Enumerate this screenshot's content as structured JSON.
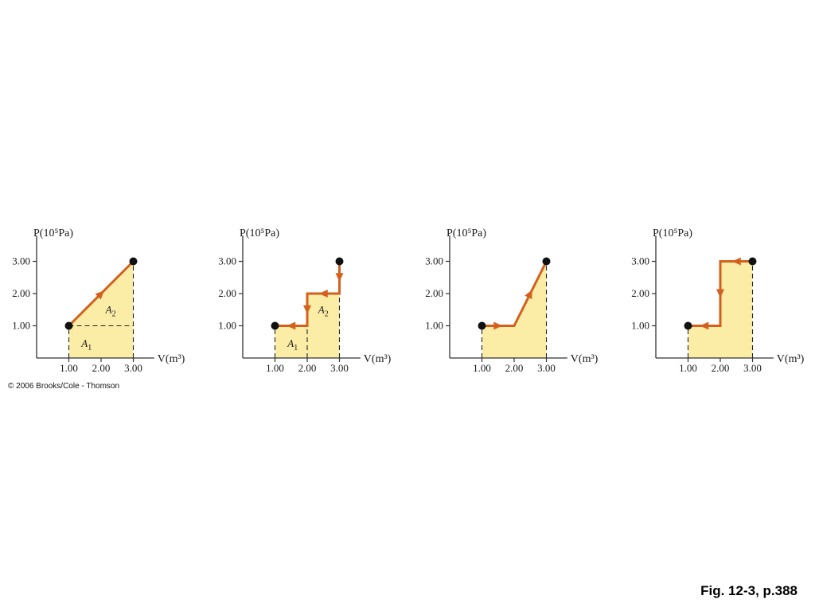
{
  "colors": {
    "fill": "#fbeca6",
    "path": "#d4601f",
    "dot": "#111111",
    "axis": "#333333"
  },
  "copyright": "© 2006 Brooks/Cole - Thomson",
  "caption": "Fig. 12-3, p.388",
  "chart_data": [
    {
      "type": "line",
      "ylabel": "P(10⁵Pa)",
      "xlabel": "V(m³)",
      "xticks": [
        "1.00",
        "2.00",
        "3.00"
      ],
      "yticks": [
        "1.00",
        "2.00",
        "3.00"
      ],
      "xlim": [
        0,
        3.6
      ],
      "ylim": [
        0,
        3.6
      ],
      "path": [
        {
          "x": 1.0,
          "y": 1.0
        },
        {
          "x": 3.0,
          "y": 3.0
        }
      ],
      "arrows": [
        [
          0,
          1
        ]
      ],
      "shaded_region": [
        {
          "x": 1.0,
          "y": 0
        },
        {
          "x": 1.0,
          "y": 1.0
        },
        {
          "x": 3.0,
          "y": 3.0
        },
        {
          "x": 3.0,
          "y": 0
        }
      ],
      "dashed": [
        [
          {
            "x": 1.0,
            "y": 0
          },
          {
            "x": 1.0,
            "y": 1.0
          }
        ],
        [
          {
            "x": 1.0,
            "y": 1.0
          },
          {
            "x": 3.0,
            "y": 1.0
          }
        ],
        [
          {
            "x": 3.0,
            "y": 0
          },
          {
            "x": 3.0,
            "y": 3.0
          }
        ]
      ],
      "area_labels": [
        {
          "text": "A",
          "sub": "1",
          "x": 1.55,
          "y": 0.45
        },
        {
          "text": "A",
          "sub": "2",
          "x": 2.3,
          "y": 1.5
        }
      ]
    },
    {
      "type": "line",
      "ylabel": "P(10⁵Pa)",
      "xlabel": "V(m³)",
      "xticks": [
        "1.00",
        "2.00",
        "3.00"
      ],
      "yticks": [
        "1.00",
        "2.00",
        "3.00"
      ],
      "xlim": [
        0,
        3.6
      ],
      "ylim": [
        0,
        3.6
      ],
      "path": [
        {
          "x": 3.0,
          "y": 3.0
        },
        {
          "x": 3.0,
          "y": 2.0
        },
        {
          "x": 2.0,
          "y": 2.0
        },
        {
          "x": 2.0,
          "y": 1.0
        },
        {
          "x": 1.0,
          "y": 1.0
        }
      ],
      "arrows": [
        [
          0,
          1
        ],
        [
          1,
          2
        ],
        [
          2,
          3
        ],
        [
          3,
          4
        ]
      ],
      "shaded_region": [
        {
          "x": 1.0,
          "y": 0
        },
        {
          "x": 1.0,
          "y": 1.0
        },
        {
          "x": 2.0,
          "y": 1.0
        },
        {
          "x": 2.0,
          "y": 2.0
        },
        {
          "x": 3.0,
          "y": 2.0
        },
        {
          "x": 3.0,
          "y": 0
        }
      ],
      "dashed": [
        [
          {
            "x": 1.0,
            "y": 0
          },
          {
            "x": 1.0,
            "y": 1.0
          }
        ],
        [
          {
            "x": 2.0,
            "y": 0
          },
          {
            "x": 2.0,
            "y": 1.0
          }
        ],
        [
          {
            "x": 3.0,
            "y": 0
          },
          {
            "x": 3.0,
            "y": 2.0
          }
        ]
      ],
      "area_labels": [
        {
          "text": "A",
          "sub": "1",
          "x": 1.55,
          "y": 0.45
        },
        {
          "text": "A",
          "sub": "2",
          "x": 2.5,
          "y": 1.5
        }
      ]
    },
    {
      "type": "line",
      "ylabel": "P(10⁵Pa)",
      "xlabel": "V(m³)",
      "xticks": [
        "1.00",
        "2.00",
        "3.00"
      ],
      "yticks": [
        "1.00",
        "2.00",
        "3.00"
      ],
      "xlim": [
        0,
        3.6
      ],
      "ylim": [
        0,
        3.6
      ],
      "path": [
        {
          "x": 1.0,
          "y": 1.0
        },
        {
          "x": 2.0,
          "y": 1.0
        },
        {
          "x": 3.0,
          "y": 3.0
        }
      ],
      "arrows": [
        [
          0,
          1
        ],
        [
          1,
          2
        ]
      ],
      "shaded_region": [
        {
          "x": 1.0,
          "y": 0
        },
        {
          "x": 1.0,
          "y": 1.0
        },
        {
          "x": 2.0,
          "y": 1.0
        },
        {
          "x": 3.0,
          "y": 3.0
        },
        {
          "x": 3.0,
          "y": 0
        }
      ],
      "dashed": [
        [
          {
            "x": 1.0,
            "y": 0
          },
          {
            "x": 1.0,
            "y": 1.0
          }
        ],
        [
          {
            "x": 3.0,
            "y": 0
          },
          {
            "x": 3.0,
            "y": 3.0
          }
        ]
      ],
      "area_labels": []
    },
    {
      "type": "line",
      "ylabel": "P(10⁵Pa)",
      "xlabel": "V(m³)",
      "xticks": [
        "1.00",
        "2.00",
        "3.00"
      ],
      "yticks": [
        "1.00",
        "2.00",
        "3.00"
      ],
      "xlim": [
        0,
        3.6
      ],
      "ylim": [
        0,
        3.6
      ],
      "path": [
        {
          "x": 3.0,
          "y": 3.0
        },
        {
          "x": 2.0,
          "y": 3.0
        },
        {
          "x": 2.0,
          "y": 1.0
        },
        {
          "x": 1.0,
          "y": 1.0
        }
      ],
      "arrows": [
        [
          0,
          1
        ],
        [
          1,
          2
        ],
        [
          2,
          3
        ]
      ],
      "shaded_region": [
        {
          "x": 1.0,
          "y": 0
        },
        {
          "x": 1.0,
          "y": 1.0
        },
        {
          "x": 2.0,
          "y": 1.0
        },
        {
          "x": 2.0,
          "y": 3.0
        },
        {
          "x": 3.0,
          "y": 3.0
        },
        {
          "x": 3.0,
          "y": 0
        }
      ],
      "dashed": [
        [
          {
            "x": 1.0,
            "y": 0
          },
          {
            "x": 1.0,
            "y": 1.0
          }
        ],
        [
          {
            "x": 3.0,
            "y": 0
          },
          {
            "x": 3.0,
            "y": 3.0
          }
        ]
      ],
      "area_labels": []
    }
  ]
}
